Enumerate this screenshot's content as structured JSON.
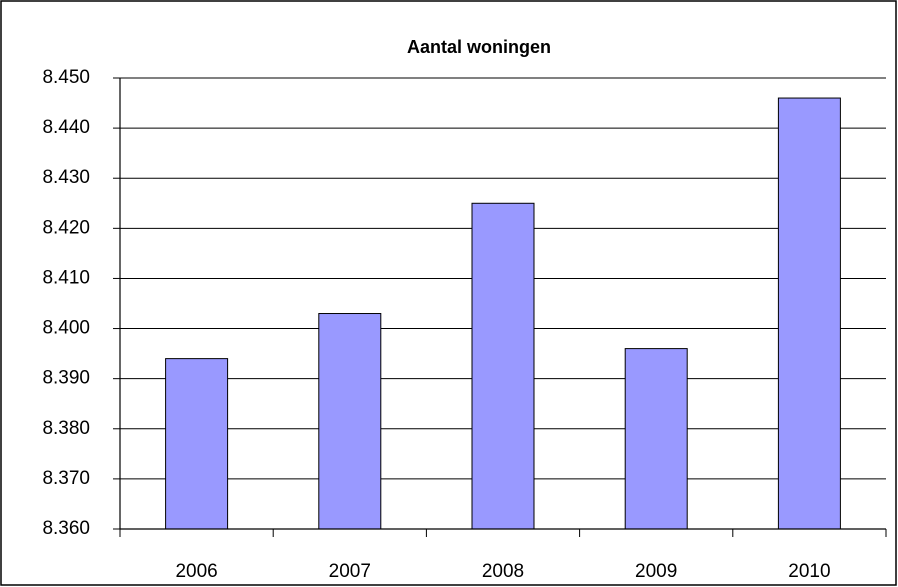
{
  "chart_data": {
    "type": "bar",
    "title": "Aantal woningen",
    "categories": [
      "2006",
      "2007",
      "2008",
      "2009",
      "2010"
    ],
    "values": [
      8394,
      8403,
      8425,
      8396,
      8446
    ],
    "color": "#9999ff",
    "ylim": [
      8360,
      8450
    ],
    "yticks": [
      {
        "value": 8360,
        "label": "8.360"
      },
      {
        "value": 8370,
        "label": "8.370"
      },
      {
        "value": 8380,
        "label": "8.380"
      },
      {
        "value": 8390,
        "label": "8.390"
      },
      {
        "value": 8400,
        "label": "8.400"
      },
      {
        "value": 8410,
        "label": "8.410"
      },
      {
        "value": 8420,
        "label": "8.420"
      },
      {
        "value": 8430,
        "label": "8.430"
      },
      {
        "value": 8440,
        "label": "8.440"
      },
      {
        "value": 8450,
        "label": "8.450"
      }
    ],
    "grid": true
  }
}
